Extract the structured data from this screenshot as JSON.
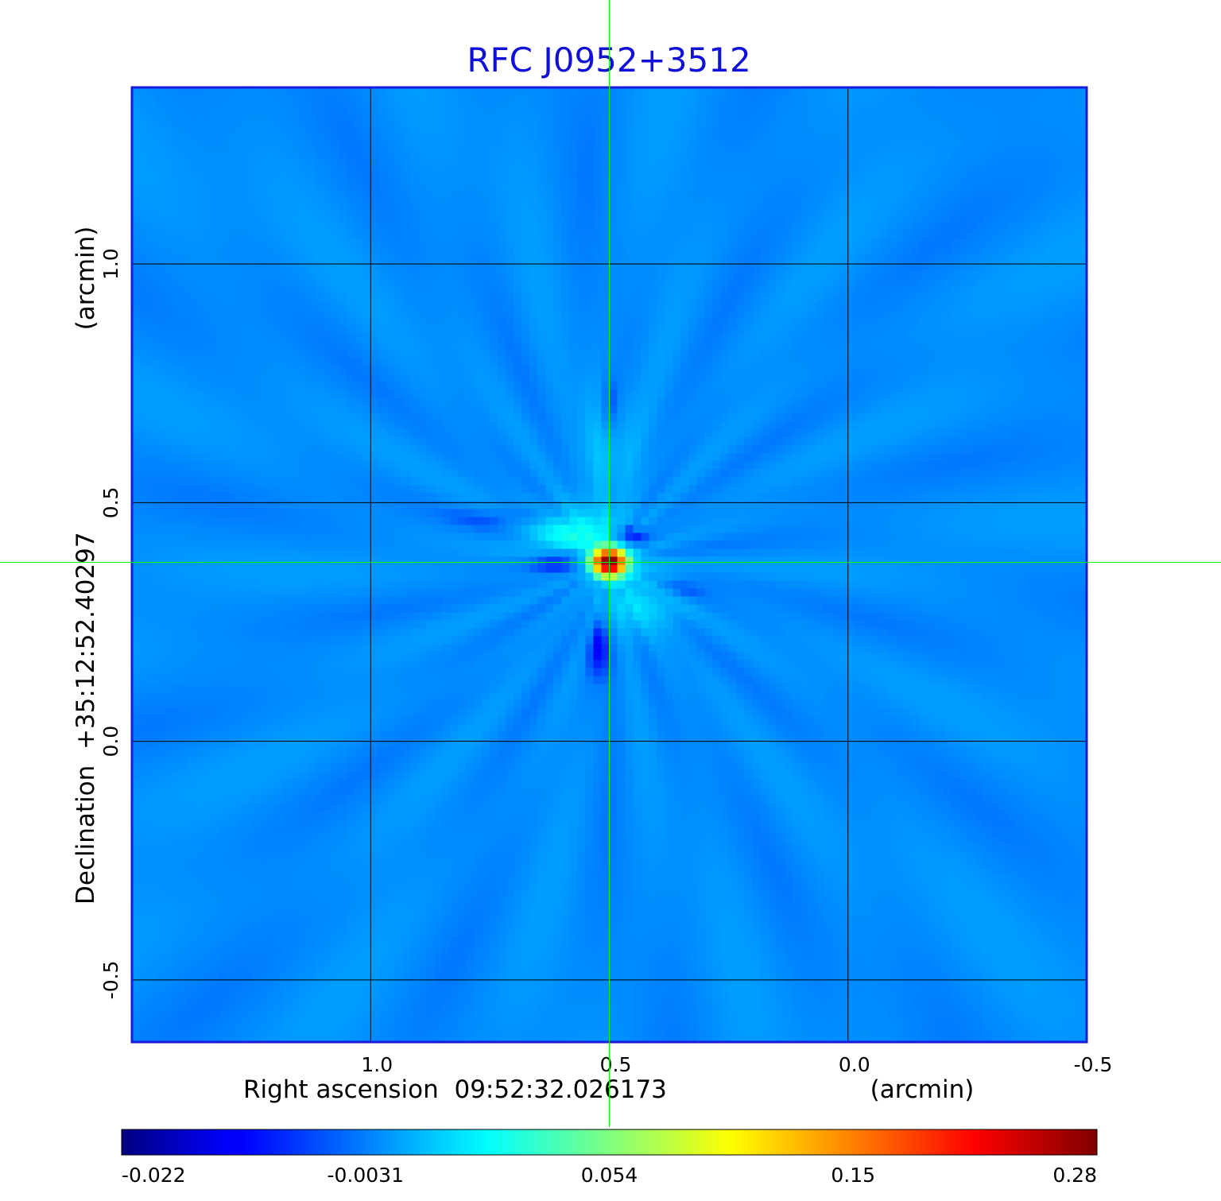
{
  "chart_data": {
    "type": "heatmap",
    "title": "RFC J0952+3512",
    "xlabel": "Right ascension  09:52:32.026173",
    "xunit": "(arcmin)",
    "ylabel": "Declination  +35:12:52.40297",
    "yunit": "(arcmin)",
    "xlim": [
      1.5,
      -0.5
    ],
    "ylim": [
      -0.63,
      1.37
    ],
    "x_ticks": [
      "1.0",
      "0.5",
      "0.0",
      "-0.5"
    ],
    "x_tick_values": [
      1.0,
      0.5,
      0.0,
      -0.5
    ],
    "y_ticks": [
      "1.0",
      "0.5",
      "0.0",
      "-0.5"
    ],
    "y_tick_values": [
      1.0,
      0.5,
      0.0,
      -0.5
    ],
    "grid": true,
    "crosshair": {
      "x": 0.5,
      "y": 0.375,
      "color": "#00ff00"
    },
    "background_value": 0.0,
    "peak": {
      "x": 0.5,
      "y": 0.375,
      "value": 0.28
    },
    "sources": [
      {
        "x": 0.5,
        "y": 0.375,
        "sx": 0.022,
        "sy": 0.018,
        "value": 0.28
      },
      {
        "x": 0.57,
        "y": 0.43,
        "sx": 0.07,
        "sy": 0.04,
        "value": 0.03
      },
      {
        "x": 0.44,
        "y": 0.3,
        "sx": 0.06,
        "sy": 0.05,
        "value": 0.02
      },
      {
        "x": 0.5,
        "y": 0.62,
        "sx": 0.04,
        "sy": 0.09,
        "value": 0.012
      }
    ],
    "negative_features": [
      {
        "x": 0.6,
        "y": 0.38,
        "sx": 0.05,
        "sy": 0.018,
        "value": -0.021
      },
      {
        "x": 0.46,
        "y": 0.43,
        "sx": 0.03,
        "sy": 0.015,
        "value": -0.02
      },
      {
        "x": 0.5,
        "y": 0.7,
        "sx": 0.015,
        "sy": 0.05,
        "value": -0.012
      },
      {
        "x": 0.52,
        "y": 0.2,
        "sx": 0.02,
        "sy": 0.05,
        "value": -0.012
      },
      {
        "x": 0.38,
        "y": 0.32,
        "sx": 0.06,
        "sy": 0.02,
        "value": -0.01
      },
      {
        "x": 0.68,
        "y": 0.47,
        "sx": 0.08,
        "sy": 0.015,
        "value": -0.008
      }
    ],
    "colorbar": {
      "min": -0.022,
      "max": 0.28,
      "tick_labels": [
        "-0.022",
        "-0.0031",
        "0.054",
        "0.15",
        "0.28"
      ],
      "tick_values": [
        -0.022,
        -0.0031,
        0.054,
        0.15,
        0.28
      ],
      "colormap": "jet"
    },
    "colors": {
      "title": "#1010d8",
      "frame": "#1a1adc",
      "grid": "#000000",
      "crosshair": "#00ff00"
    }
  }
}
